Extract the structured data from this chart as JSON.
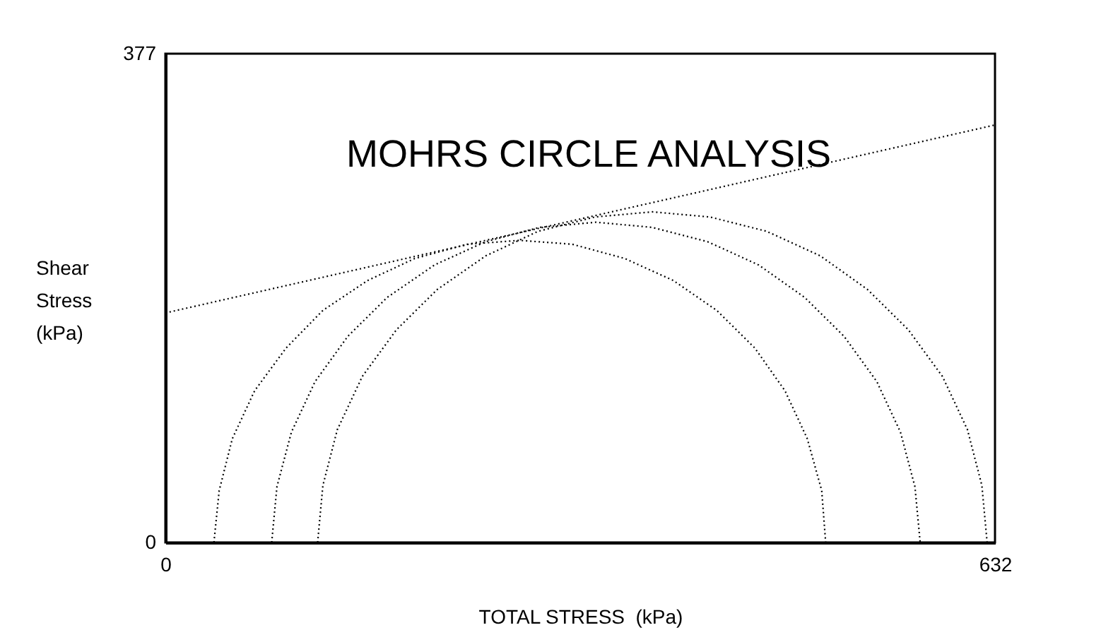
{
  "chart_data": {
    "type": "line",
    "title": "MOHRS CIRCLE ANALYSIS",
    "xlabel": "TOTAL STRESS  (kPa)",
    "ylabel": "Shear Stress (kPa)",
    "xlim": [
      0,
      632
    ],
    "ylim": [
      0,
      377
    ],
    "xticks": [
      0,
      632
    ],
    "yticks": [
      0,
      377
    ],
    "line_style": "dotted",
    "series": [
      {
        "color": "#000000",
        "x": [
          37,
          41,
          51,
          68,
          92,
          120,
          154,
          190,
          230,
          270,
          310,
          350,
          387,
          420,
          449,
          472,
          489,
          500,
          503
        ],
        "values": [
          0,
          40,
          80,
          117,
          150,
          179,
          202,
          219,
          230,
          233,
          230,
          219,
          202,
          179,
          150,
          117,
          80,
          40,
          0
        ]
      },
      {
        "color": "#000000",
        "x": [
          81,
          85,
          96,
          114,
          139,
          169,
          205,
          244,
          285,
          328,
          371,
          413,
          452,
          487,
          517,
          542,
          560,
          571,
          575
        ],
        "values": [
          0,
          43,
          85,
          124,
          159,
          189,
          214,
          232,
          243,
          247,
          243,
          232,
          214,
          189,
          159,
          124,
          85,
          43,
          0
        ]
      },
      {
        "color": "#000000",
        "x": [
          116,
          120,
          131,
          150,
          176,
          207,
          244,
          284,
          327,
          371,
          415,
          458,
          499,
          535,
          566,
          592,
          611,
          622,
          626
        ],
        "values": [
          0,
          44,
          87,
          128,
          164,
          195,
          221,
          240,
          251,
          255,
          251,
          240,
          221,
          195,
          164,
          128,
          87,
          44,
          0
        ]
      },
      {
        "type": "line",
        "color": "#000000",
        "x": [
          0,
          632
        ],
        "values": [
          177,
          322
        ]
      }
    ]
  }
}
